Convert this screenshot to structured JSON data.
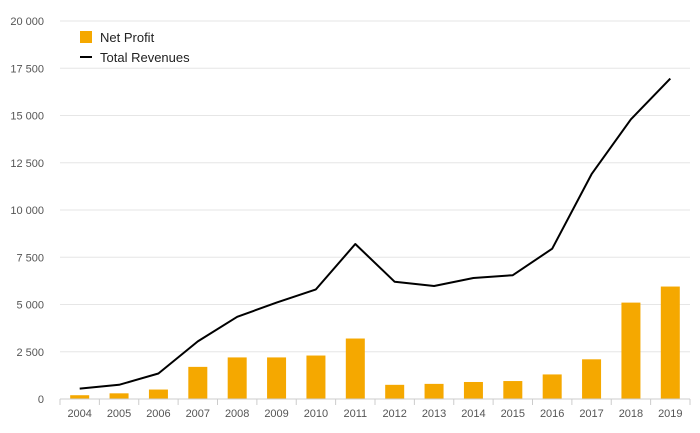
{
  "chart_data": {
    "type": "bar",
    "title": "",
    "xlabel": "",
    "ylabel": "",
    "categories": [
      "2004",
      "2005",
      "2006",
      "2007",
      "2008",
      "2009",
      "2010",
      "2011",
      "2012",
      "2013",
      "2014",
      "2015",
      "2016",
      "2017",
      "2018",
      "2019"
    ],
    "series": [
      {
        "name": "Net Profit",
        "kind": "bar",
        "color": "#f5a800",
        "values": [
          200,
          300,
          500,
          1700,
          2200,
          2200,
          2300,
          3200,
          750,
          800,
          900,
          950,
          1300,
          2100,
          5100,
          5950
        ]
      },
      {
        "name": "Total Revenues",
        "kind": "line",
        "color": "#000000",
        "values": [
          550,
          750,
          1350,
          3050,
          4350,
          5100,
          5800,
          8200,
          6200,
          5980,
          6400,
          6550,
          7950,
          11900,
          14800,
          16950
        ]
      }
    ],
    "ylim": [
      0,
      20000
    ],
    "yticks": [
      0,
      2500,
      5000,
      7500,
      10000,
      12500,
      15000,
      17500,
      20000
    ],
    "ytick_labels": [
      "0",
      "2 500",
      "5 000",
      "7 500",
      "10 000",
      "12 500",
      "15 000",
      "17 500",
      "20 000"
    ],
    "grid": true,
    "legend_position": "top-left"
  }
}
